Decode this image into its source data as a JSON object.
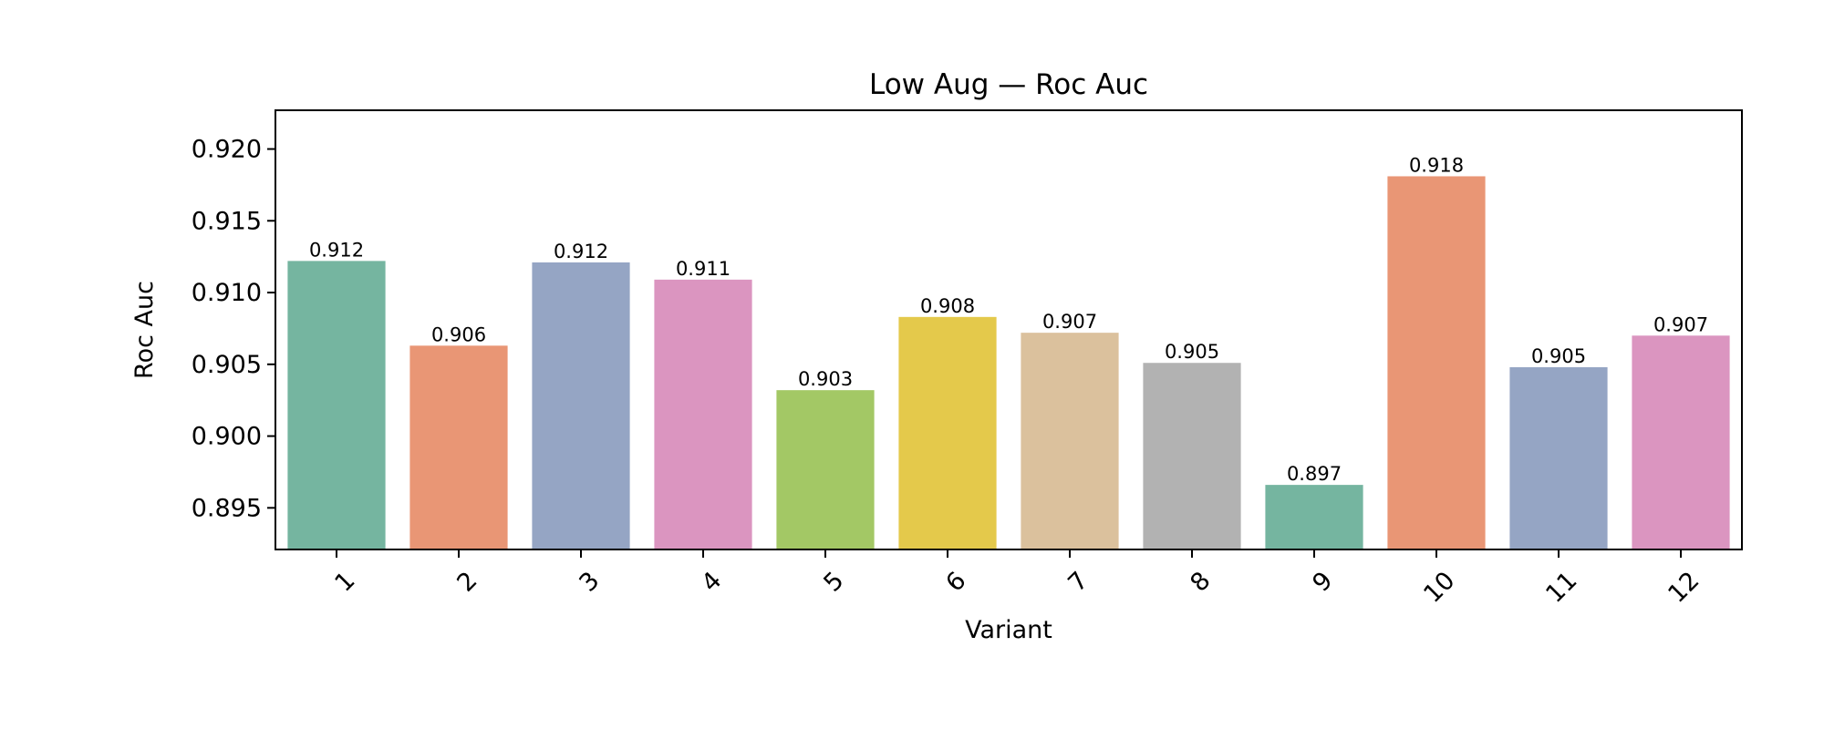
{
  "chart_data": {
    "type": "bar",
    "title": "Low Aug — Roc Auc",
    "xlabel": "Variant",
    "ylabel": "Roc Auc",
    "categories": [
      "1",
      "2",
      "3",
      "4",
      "5",
      "6",
      "7",
      "8",
      "9",
      "10",
      "11",
      "12"
    ],
    "values": [
      0.9122,
      0.9063,
      0.9121,
      0.9109,
      0.9032,
      0.9083,
      0.9072,
      0.9051,
      0.8966,
      0.9181,
      0.9048,
      0.907
    ],
    "data_labels": [
      "0.912",
      "0.906",
      "0.912",
      "0.911",
      "0.903",
      "0.908",
      "0.907",
      "0.905",
      "0.897",
      "0.918",
      "0.905",
      "0.907"
    ],
    "colors": [
      "#75b5a0",
      "#e99675",
      "#95a5c4",
      "#db95c0",
      "#a3c865",
      "#e4c94b",
      "#dbc19d",
      "#b2b2b2",
      "#75b5a0",
      "#e99675",
      "#95a5c4",
      "#db95c0"
    ],
    "ylim": [
      0.8921,
      0.9227
    ],
    "yticks": [
      0.895,
      0.9,
      0.905,
      0.91,
      0.915,
      0.92
    ],
    "ytick_labels": [
      "0.895",
      "0.900",
      "0.905",
      "0.910",
      "0.915",
      "0.920"
    ],
    "grid": false,
    "legend": "none",
    "xtick_rotation": 45
  }
}
